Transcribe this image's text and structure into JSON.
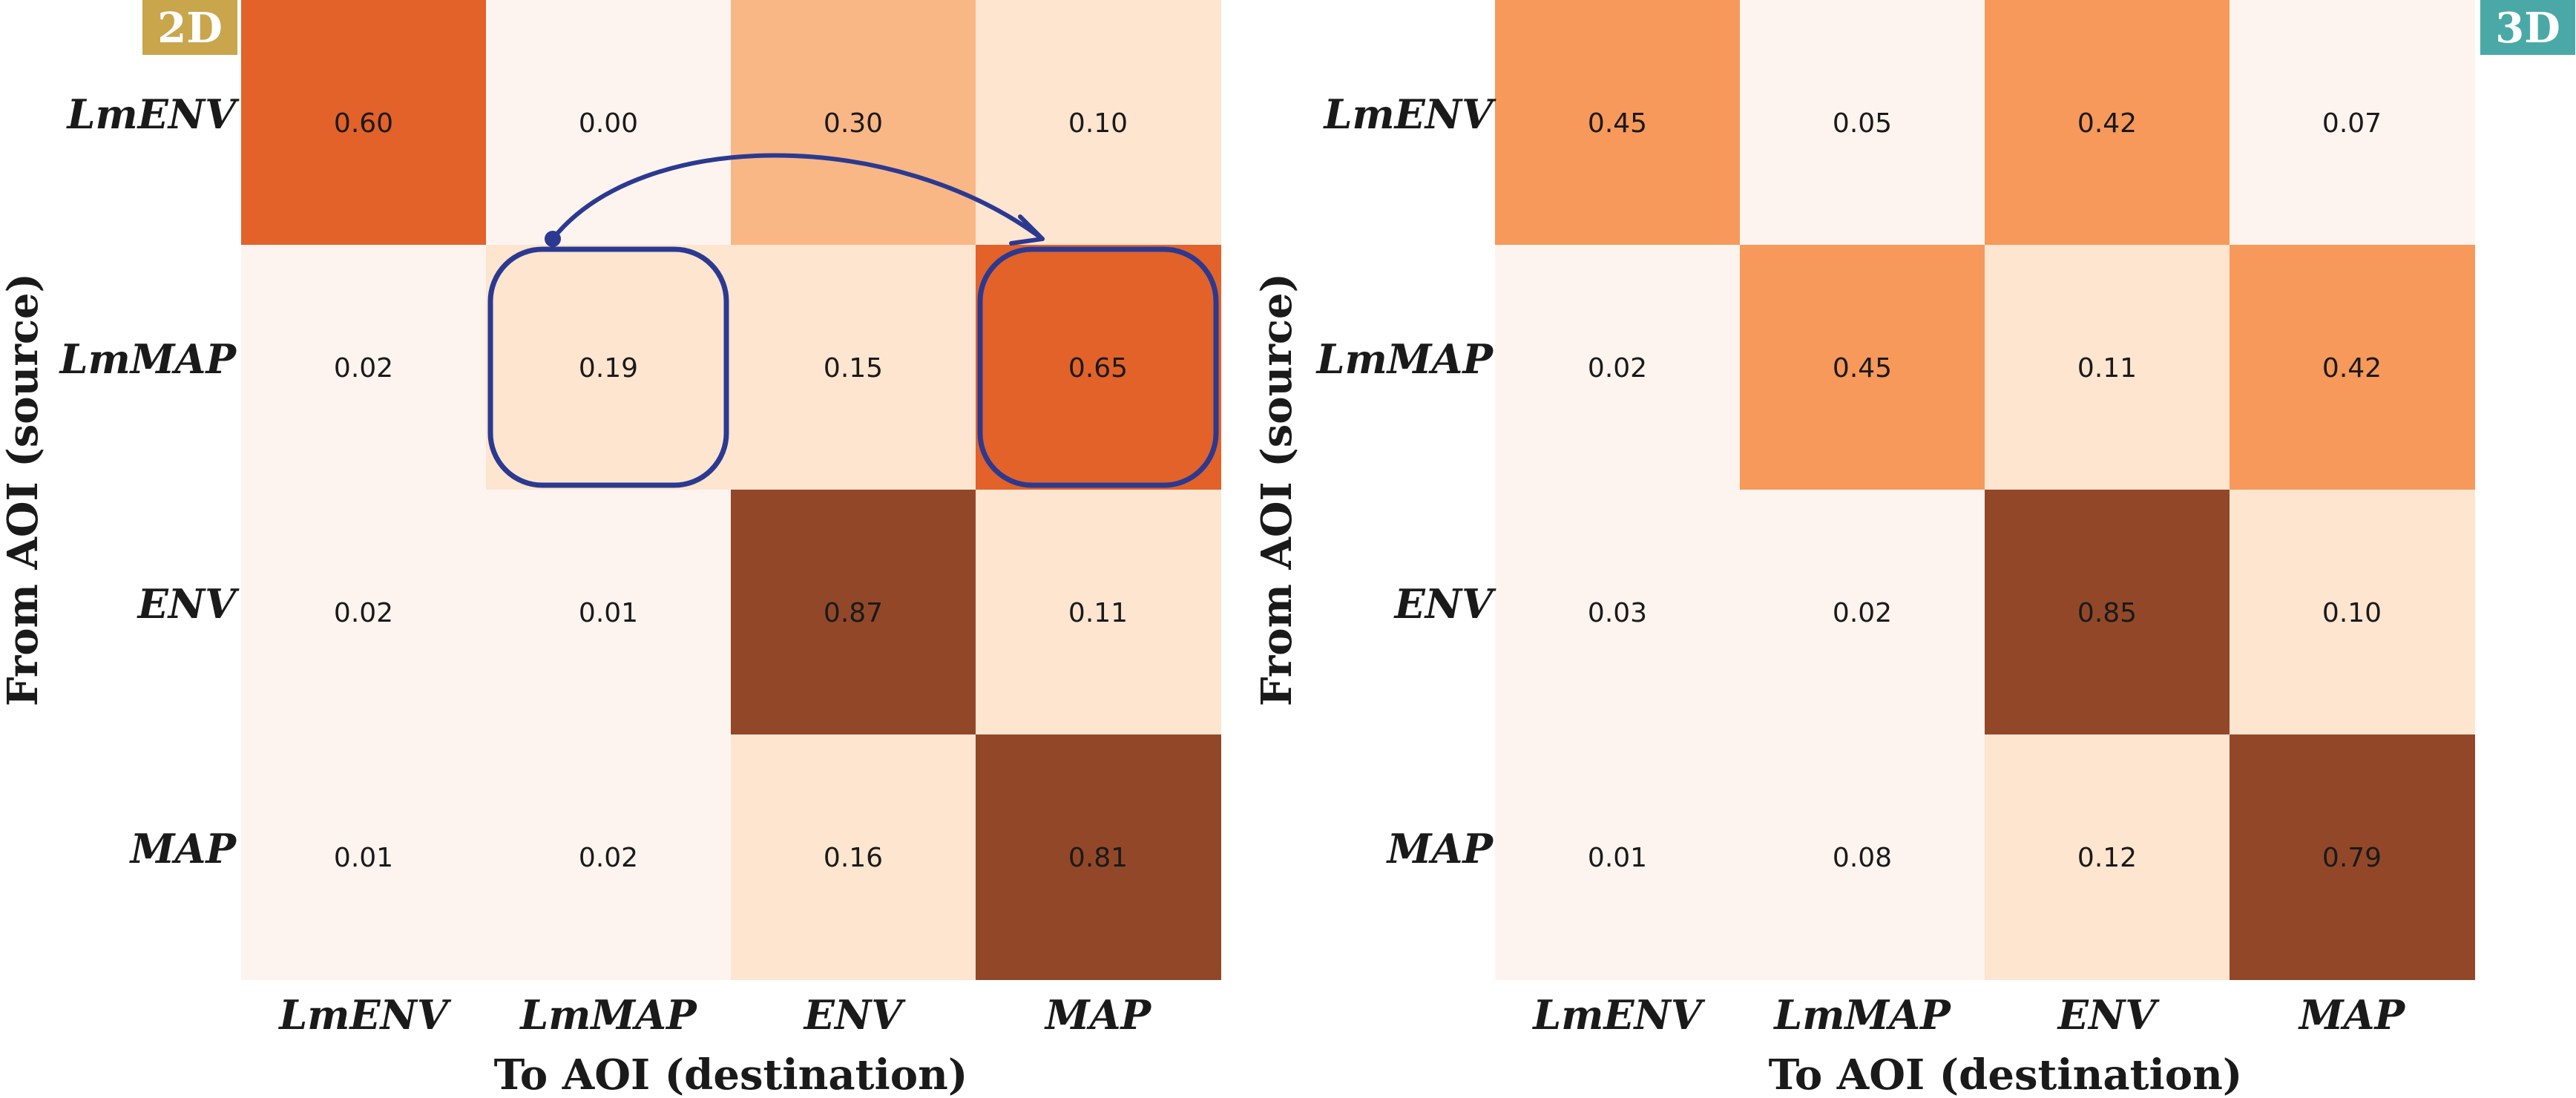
{
  "chart_data": [
    {
      "type": "heatmap",
      "badge": "2D",
      "badge_color": "#c9a64c",
      "xlabel": "To AOI (destination)",
      "ylabel": "From AOI (source)",
      "x_categories": [
        "LmENV",
        "LmMAP",
        "ENV",
        "MAP"
      ],
      "y_categories": [
        "LmENV",
        "LmMAP",
        "ENV",
        "MAP"
      ],
      "values": [
        [
          0.6,
          0.0,
          0.3,
          0.1
        ],
        [
          0.02,
          0.19,
          0.15,
          0.65
        ],
        [
          0.02,
          0.01,
          0.87,
          0.11
        ],
        [
          0.01,
          0.02,
          0.16,
          0.81
        ]
      ],
      "annotations": {
        "highlight_cells": [
          [
            1,
            1
          ],
          [
            1,
            3
          ]
        ],
        "arrow": {
          "from": [
            1,
            1
          ],
          "to": [
            1,
            3
          ]
        },
        "color": "#2b3990"
      }
    },
    {
      "type": "heatmap",
      "badge": "3D",
      "badge_color": "#4aa9a6",
      "xlabel": "To AOI (destination)",
      "ylabel": "From AOI (source)",
      "x_categories": [
        "LmENV",
        "LmMAP",
        "ENV",
        "MAP"
      ],
      "y_categories": [
        "LmENV",
        "LmMAP",
        "ENV",
        "MAP"
      ],
      "values": [
        [
          0.45,
          0.05,
          0.42,
          0.07
        ],
        [
          0.02,
          0.45,
          0.11,
          0.42
        ],
        [
          0.03,
          0.02,
          0.85,
          0.1
        ],
        [
          0.01,
          0.08,
          0.12,
          0.79
        ]
      ]
    }
  ],
  "colorscale": [
    "#fef4ef",
    "#fde5d0",
    "#f9b785",
    "#f6995a",
    "#e2622a",
    "#924828"
  ]
}
